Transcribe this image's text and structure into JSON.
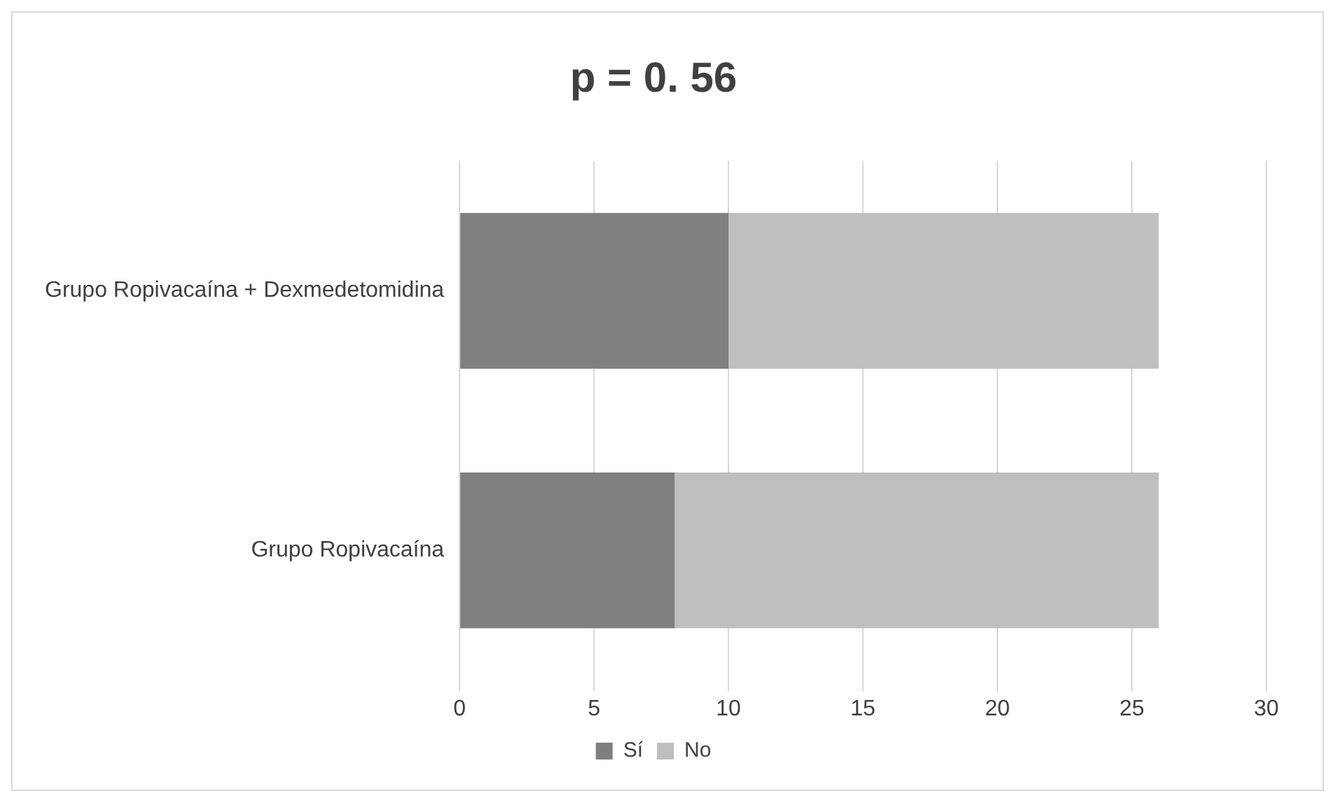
{
  "chart_data": {
    "type": "bar",
    "orientation": "horizontal",
    "stacked": true,
    "title": "p = 0. 56",
    "categories": [
      "Grupo Ropivacaína + Dexmedetomidina",
      "Grupo Ropivacaína"
    ],
    "series": [
      {
        "name": "Sí",
        "color": "#7f7f7f",
        "values": [
          10,
          8
        ]
      },
      {
        "name": "No",
        "color": "#bfbfbf",
        "values": [
          16,
          18
        ]
      }
    ],
    "xlim": [
      0,
      30
    ],
    "xticks": [
      0,
      5,
      10,
      15,
      20,
      25,
      30
    ],
    "grid": "x",
    "legend": "bottom"
  }
}
